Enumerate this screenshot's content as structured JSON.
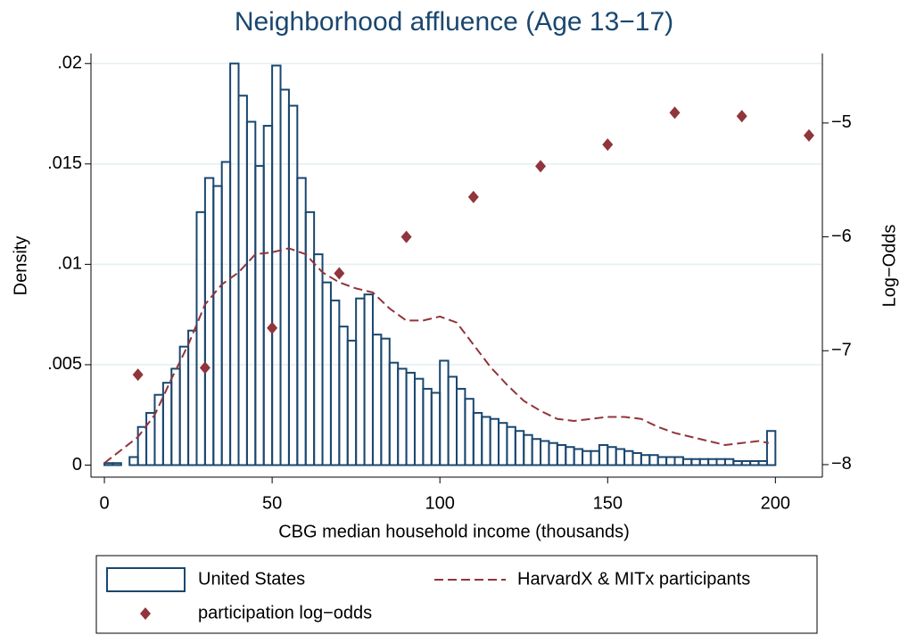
{
  "chart_data": {
    "type": "combo",
    "title": "Neighborhood affluence (Age 13−17)",
    "x_label": "CBG median household income (thousands)",
    "y_label": "Density",
    "y2_label": "Log−Odds",
    "xlim": [
      -4,
      214
    ],
    "xticks": [
      0,
      50,
      100,
      150,
      200
    ],
    "ylim": [
      -0.0006,
      0.0205
    ],
    "yticks": [
      0,
      {
        "value": 0.005,
        "label": ".005"
      },
      {
        "value": 0.01,
        "label": ".01"
      },
      {
        "value": 0.015,
        "label": ".015"
      },
      {
        "value": 0.02,
        "label": ".02"
      }
    ],
    "y2lim": [
      -8.11,
      -4.39
    ],
    "y2ticks": [
      {
        "value": -8,
        "label": "−8"
      },
      {
        "value": -7,
        "label": "−7"
      },
      {
        "value": -6,
        "label": "−6"
      },
      {
        "value": -5,
        "label": "−5"
      }
    ],
    "grid": true,
    "legend": "bottom",
    "series": [
      {
        "type": "histogram",
        "name": "United States",
        "color": "#1a476f",
        "bins": [
          0,
          2.5,
          5,
          7.5,
          10,
          12.5,
          15,
          17.5,
          20,
          22.5,
          25,
          27.5,
          30,
          32.5,
          35,
          37.5,
          40,
          42.5,
          45,
          47.5,
          50,
          52.5,
          55,
          57.5,
          60,
          62.5,
          65,
          67.5,
          70,
          72.5,
          75,
          77.5,
          80,
          82.5,
          85,
          87.5,
          90,
          92.5,
          95,
          97.5,
          100,
          102.5,
          105,
          107.5,
          110,
          112.5,
          115,
          117.5,
          120,
          122.5,
          125,
          127.5,
          130,
          132.5,
          135,
          137.5,
          140,
          142.5,
          145,
          147.5,
          150,
          152.5,
          155,
          157.5,
          160,
          162.5,
          165,
          167.5,
          170,
          172.5,
          175,
          177.5,
          180,
          182.5,
          185,
          187.5,
          190,
          192.5,
          195,
          197.5,
          200
        ],
        "values": [
          0.0001,
          0.0001,
          0,
          0.0004,
          0.0019,
          0.0026,
          0.0035,
          0.0041,
          0.0048,
          0.0059,
          0.0067,
          0.0126,
          0.0143,
          0.0139,
          0.0151,
          0.02,
          0.0184,
          0.0171,
          0.0149,
          0.0169,
          0.0199,
          0.0187,
          0.0179,
          0.0143,
          0.0126,
          0.0105,
          0.0091,
          0.0082,
          0.0069,
          0.0062,
          0.0083,
          0.0085,
          0.0065,
          0.0063,
          0.0051,
          0.0048,
          0.0046,
          0.0043,
          0.0038,
          0.0036,
          0.0052,
          0.0044,
          0.0038,
          0.0033,
          0.0026,
          0.0024,
          0.0023,
          0.0021,
          0.0019,
          0.0017,
          0.0015,
          0.0013,
          0.0012,
          0.0011,
          0.001,
          0.0009,
          0.0008,
          0.0007,
          0.0007,
          0.001,
          0.0009,
          0.0008,
          0.0007,
          0.0006,
          0.0005,
          0.0005,
          0.0004,
          0.0004,
          0.0004,
          0.0003,
          0.0003,
          0.0003,
          0.0003,
          0.0003,
          0.0003,
          0.0002,
          0.0002,
          0.0002,
          0.0002,
          0.0017
        ]
      },
      {
        "type": "line",
        "name": "HarvardX & MITx participants",
        "color": "#90353b",
        "x": [
          0,
          10,
          15,
          20,
          25,
          30,
          35,
          40,
          45,
          50,
          55,
          60,
          65,
          70,
          75,
          80,
          85,
          90,
          95,
          100,
          105,
          110,
          115,
          120,
          125,
          130,
          135,
          140,
          150,
          155,
          160,
          165,
          170,
          175,
          180,
          185,
          190,
          195,
          198
        ],
        "values": [
          0.0001,
          0.0014,
          0.0025,
          0.0043,
          0.006,
          0.008,
          0.009,
          0.0096,
          0.0105,
          0.0106,
          0.0108,
          0.0105,
          0.0096,
          0.0091,
          0.0088,
          0.0086,
          0.0078,
          0.0072,
          0.0072,
          0.0074,
          0.0071,
          0.006,
          0.0049,
          0.004,
          0.0032,
          0.0027,
          0.0023,
          0.0022,
          0.0024,
          0.0024,
          0.0023,
          0.0019,
          0.0016,
          0.0014,
          0.0012,
          0.001,
          0.0011,
          0.0012,
          0.0011
        ]
      },
      {
        "type": "scatter",
        "name": "participation log−odds",
        "color": "#90353b",
        "axis": "y2",
        "x": [
          10,
          30,
          50,
          70,
          90,
          110,
          130,
          150,
          170,
          190,
          210
        ],
        "values": [
          -7.21,
          -7.15,
          -6.8,
          -6.32,
          -6.0,
          -5.65,
          -5.38,
          -5.19,
          -4.91,
          -4.94,
          -5.11
        ]
      }
    ]
  }
}
